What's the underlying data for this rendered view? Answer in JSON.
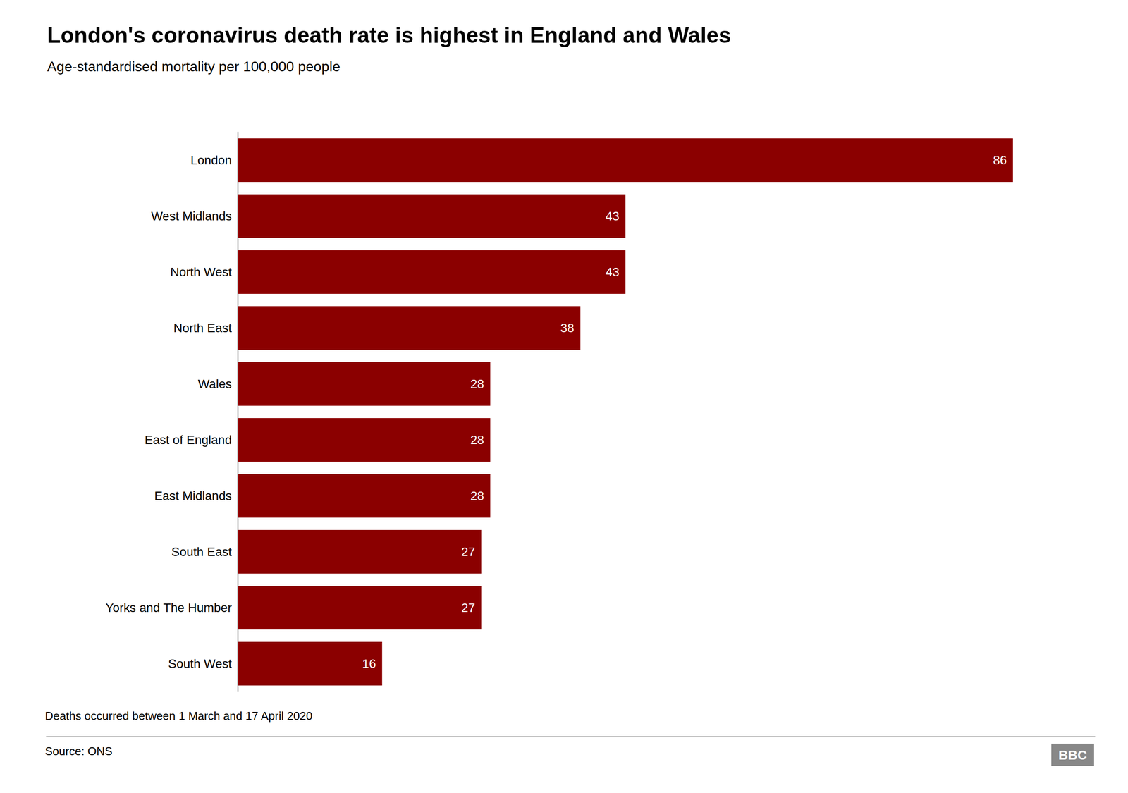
{
  "chart_data": {
    "type": "bar",
    "orientation": "horizontal",
    "title": "London's coronavirus death rate is highest in England and Wales",
    "subtitle": "Age-standardised mortality per 100,000 people",
    "annotations": [
      "Deaths occurred between 1 March and 17 April 2020",
      "Source: ONS",
      "BBC"
    ],
    "categories": [
      "London",
      "West Midlands",
      "North West",
      "North East",
      "Wales",
      "East of England",
      "East Midlands",
      "South East",
      "Yorks and The Humber",
      "South West"
    ],
    "values": [
      86,
      43,
      43,
      38,
      28,
      28,
      28,
      27,
      27,
      16
    ],
    "color": "#8B0000",
    "xlim": [
      0,
      95
    ],
    "tick_labels": "y",
    "data_labels": true,
    "grid": false
  }
}
